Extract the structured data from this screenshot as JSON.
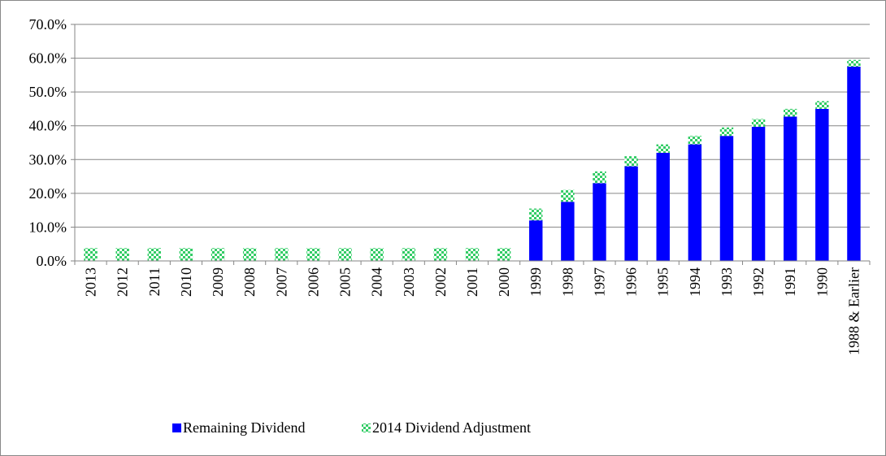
{
  "chart_data": {
    "type": "stacked_bar",
    "categories": [
      "2013",
      "2012",
      "2011",
      "2010",
      "2009",
      "2008",
      "2007",
      "2006",
      "2005",
      "2004",
      "2003",
      "2002",
      "2001",
      "2000",
      "1999",
      "1998",
      "1997",
      "1996",
      "1995",
      "1994",
      "1993",
      "1992",
      "1991",
      "1990",
      "1988 & Earlier"
    ],
    "series": [
      {
        "name": "Remaining Dividend",
        "color": "#0000ff",
        "values": [
          0,
          0,
          0,
          0,
          0,
          0,
          0,
          0,
          0,
          0,
          0,
          0,
          0,
          0,
          12,
          17.5,
          23,
          28,
          32,
          34.5,
          37,
          39.7,
          42.7,
          45,
          57.5
        ]
      },
      {
        "name": "2014 Dividend Adjustment",
        "color": "#33cc66",
        "values": [
          3.8,
          3.8,
          3.8,
          3.8,
          3.8,
          3.8,
          3.8,
          3.8,
          3.8,
          3.8,
          3.8,
          3.8,
          3.8,
          3.8,
          3.5,
          3.5,
          3.5,
          3,
          2.5,
          2.5,
          2.5,
          2.3,
          2.3,
          2.3,
          2
        ]
      }
    ],
    "ylim": [
      0,
      70
    ],
    "yticks": [
      {
        "value": 0,
        "label": "0.0%"
      },
      {
        "value": 10,
        "label": "10.0%"
      },
      {
        "value": 20,
        "label": "20.0%"
      },
      {
        "value": 30,
        "label": "30.0%"
      },
      {
        "value": 40,
        "label": "40.0%"
      },
      {
        "value": 50,
        "label": "50.0%"
      },
      {
        "value": 60,
        "label": "60.0%"
      },
      {
        "value": 70,
        "label": "70.0%"
      }
    ],
    "grid": true,
    "legend": "bottom"
  }
}
